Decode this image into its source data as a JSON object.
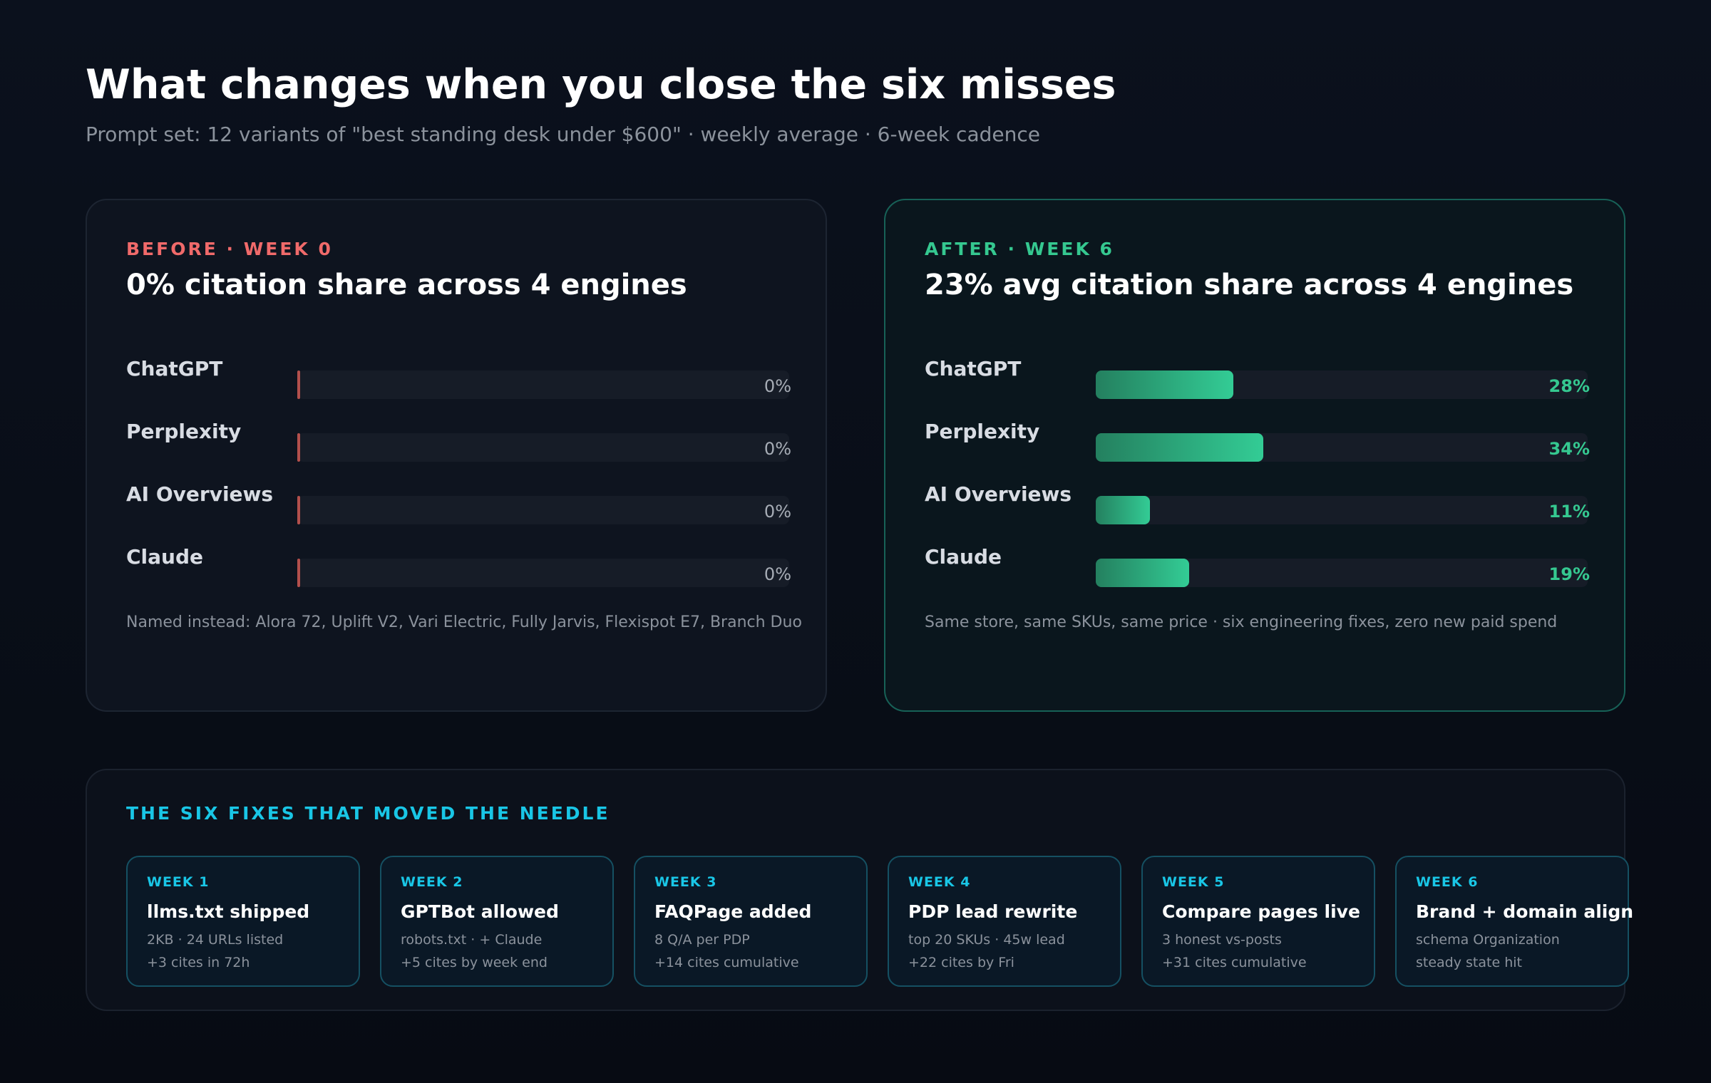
{
  "header": {
    "title": "What changes when you close the six misses",
    "subtitle": "Prompt set: 12 variants of \"best standing desk under $600\" · weekly average · 6-week cadence"
  },
  "colors": {
    "before_accent": "#f06a6a",
    "after_accent": "#35c890",
    "fixes_accent": "#19c6e6"
  },
  "chart_data": [
    {
      "type": "bar",
      "orientation": "horizontal",
      "title": "0% citation share across 4 engines",
      "subtitle": "BEFORE · WEEK 0",
      "categories": [
        "ChatGPT",
        "Perplexity",
        "AI Overviews",
        "Claude"
      ],
      "values": [
        0,
        0,
        0,
        0
      ],
      "value_labels": [
        "0%",
        "0%",
        "0%",
        "0%"
      ],
      "xlim": [
        0,
        100
      ],
      "unit": "%",
      "note": "Named instead: Alora 72, Uplift V2, Vari Electric, Fully Jarvis, Flexispot E7, Branch Duo"
    },
    {
      "type": "bar",
      "orientation": "horizontal",
      "title": "23% avg citation share across 4 engines",
      "subtitle": "AFTER · WEEK 6",
      "categories": [
        "ChatGPT",
        "Perplexity",
        "AI Overviews",
        "Claude"
      ],
      "values": [
        28,
        34,
        11,
        19
      ],
      "value_labels": [
        "28%",
        "34%",
        "11%",
        "19%"
      ],
      "xlim": [
        0,
        100
      ],
      "unit": "%",
      "note": "Same store, same SKUs, same price · six engineering fixes, zero new paid spend"
    }
  ],
  "fixes": {
    "title": "THE SIX FIXES THAT MOVED THE NEEDLE",
    "items": [
      {
        "week": "WEEK 1",
        "title": "llms.txt shipped",
        "line1": "2KB · 24 URLs listed",
        "line2": "+3 cites in 72h"
      },
      {
        "week": "WEEK 2",
        "title": "GPTBot allowed",
        "line1": "robots.txt · + Claude",
        "line2": "+5 cites by week end"
      },
      {
        "week": "WEEK 3",
        "title": "FAQPage added",
        "line1": "8 Q/A per PDP",
        "line2": "+14 cites cumulative"
      },
      {
        "week": "WEEK 4",
        "title": "PDP lead rewrite",
        "line1": "top 20 SKUs · 45w lead",
        "line2": "+22 cites by Fri"
      },
      {
        "week": "WEEK 5",
        "title": "Compare pages live",
        "line1": "3 honest vs-posts",
        "line2": "+31 cites cumulative"
      },
      {
        "week": "WEEK 6",
        "title": "Brand + domain align",
        "line1": "schema Organization",
        "line2": "steady state hit"
      }
    ]
  }
}
